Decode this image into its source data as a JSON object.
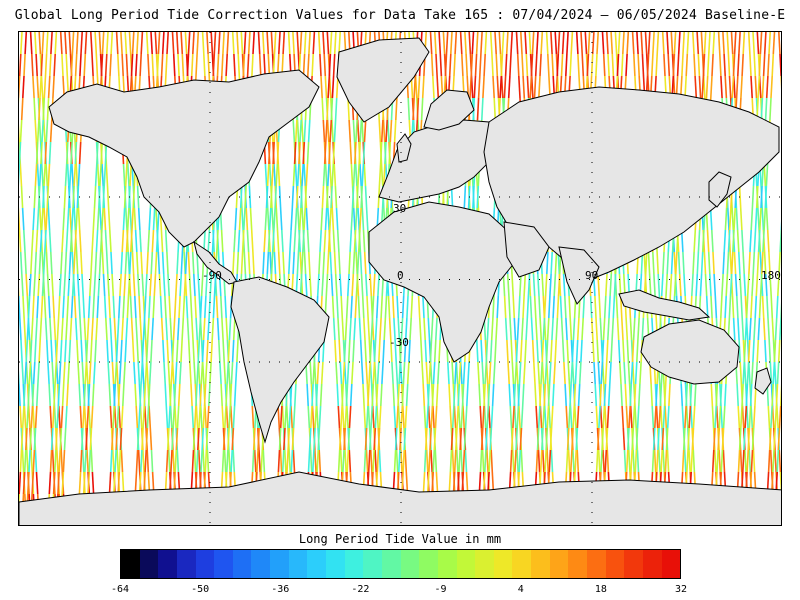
{
  "title": "Global Long Period Tide Correction Values for Data Take 165 : 07/04/2024 — 06/05/2024 Baseline-E",
  "map": {
    "projection": "equirectangular",
    "lat_labels": [
      "30",
      "-30"
    ],
    "lon_labels": [
      "-90",
      "0",
      "90",
      "180"
    ],
    "land_color": "#e6e6e6",
    "coast_color": "#000000",
    "grid_style": "dotted"
  },
  "colorbar": {
    "label": "Long Period Tide Value in mm",
    "tick_labels": [
      "-64",
      "-50",
      "-36",
      "-22",
      "-9",
      "4",
      "18",
      "32"
    ],
    "range": [
      -64,
      32
    ],
    "colors": [
      "#000000",
      "#0a0a5a",
      "#101090",
      "#1a28c0",
      "#1e3ee0",
      "#1f55f0",
      "#1e6ff5",
      "#1f88f8",
      "#22a0fa",
      "#28b8fb",
      "#2ccefb",
      "#32e2f2",
      "#3ef0e0",
      "#4ff5c4",
      "#62f8a4",
      "#78fa82",
      "#8ffb62",
      "#a8fb48",
      "#c2f838",
      "#daf030",
      "#eee828",
      "#f8d622",
      "#fcbe1c",
      "#fea418",
      "#fe8a14",
      "#fc6e12",
      "#f8520e",
      "#f2380c",
      "#ec220a",
      "#e81008"
    ]
  }
}
